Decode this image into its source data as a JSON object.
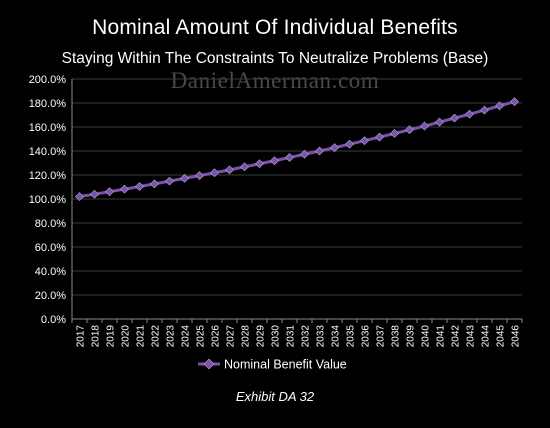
{
  "chart_data": {
    "type": "line",
    "title": "Nominal Amount Of Individual Benefits",
    "subtitle": "Staying Within The Constraints To Neutralize Problems (Base)",
    "watermark": "DanielAmerman.com",
    "caption": "Exhibit DA 32",
    "xlabel": "",
    "ylabel": "",
    "ylim": [
      0,
      200
    ],
    "y_ticks": [
      "0.0%",
      "20.0%",
      "40.0%",
      "60.0%",
      "80.0%",
      "100.0%",
      "120.0%",
      "140.0%",
      "160.0%",
      "180.0%",
      "200.0%"
    ],
    "grid": "horizontal",
    "legend_position": "bottom",
    "x": [
      "2017",
      "2018",
      "2019",
      "2020",
      "2021",
      "2022",
      "2023",
      "2024",
      "2025",
      "2026",
      "2027",
      "2028",
      "2029",
      "2030",
      "2031",
      "2032",
      "2033",
      "2034",
      "2035",
      "2036",
      "2037",
      "2038",
      "2039",
      "2040",
      "2041",
      "2042",
      "2043",
      "2044",
      "2045",
      "2046"
    ],
    "series": [
      {
        "name": "Nominal Benefit Value",
        "color": "#7b52a8",
        "values": [
          102.0,
          104.0,
          106.1,
          108.2,
          110.4,
          112.6,
          114.9,
          117.2,
          119.5,
          121.9,
          124.3,
          126.8,
          129.4,
          131.9,
          134.6,
          137.3,
          140.0,
          142.8,
          145.7,
          148.6,
          151.6,
          154.6,
          157.7,
          160.8,
          164.1,
          167.4,
          170.7,
          174.1,
          177.6,
          181.1
        ]
      }
    ]
  }
}
